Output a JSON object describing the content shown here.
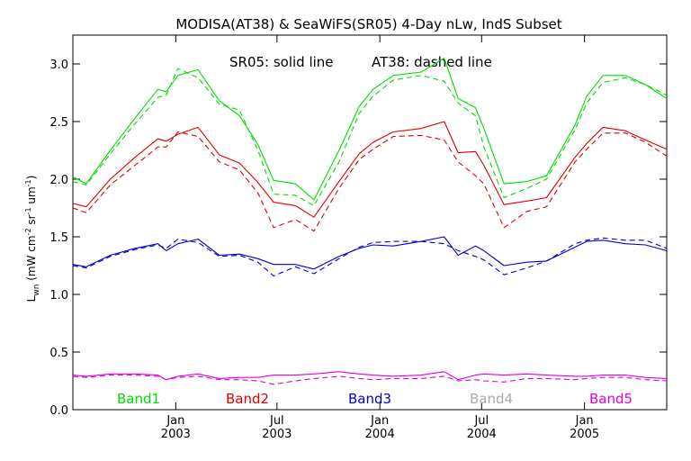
{
  "chart_data": {
    "type": "line",
    "title": "MODISA(AT38) & SeaWiFS(SR05) 4-Day nLw, IndS Subset",
    "annotation": {
      "solid": "SR05: solid line",
      "dashed": "AT38: dashed line"
    },
    "ylabel": {
      "main": "L",
      "sub": "wn",
      "units_pre": " (mW cm",
      "e1": "-2",
      "mid1": " sr",
      "e2": "-1",
      "mid2": " um",
      "e3": "-1",
      "units_post": ")"
    },
    "ylim": [
      0.0,
      3.25
    ],
    "yticks": [
      {
        "v": 0.0,
        "label": "0.0"
      },
      {
        "v": 0.5,
        "label": "0.5"
      },
      {
        "v": 1.0,
        "label": "1.0"
      },
      {
        "v": 1.5,
        "label": "1.5"
      },
      {
        "v": 2.0,
        "label": "2.0"
      },
      {
        "v": 2.5,
        "label": "2.5"
      },
      {
        "v": 3.0,
        "label": "3.0"
      }
    ],
    "xlim": [
      "2002-07-01",
      "2005-05-28"
    ],
    "xticks": [
      {
        "date": "2003-01-01",
        "month": "Jan",
        "year": "2003"
      },
      {
        "date": "2003-07-01",
        "month": "Jul",
        "year": "2003"
      },
      {
        "date": "2004-01-01",
        "month": "Jan",
        "year": "2004"
      },
      {
        "date": "2004-07-01",
        "month": "Jul",
        "year": "2004"
      },
      {
        "date": "2005-01-01",
        "month": "Jan",
        "year": "2005"
      }
    ],
    "legend": [
      {
        "label": "Band1",
        "color": "#00dd00"
      },
      {
        "label": "Band2",
        "color": "#dd0000"
      },
      {
        "label": "Band3",
        "color": "#0000cc"
      },
      {
        "label": "Band4",
        "color": "#aaaaaa"
      },
      {
        "label": "Band5",
        "color": "#dd00dd"
      }
    ],
    "series": [
      {
        "name": "Band1",
        "instrument": "SR05",
        "style": "solid",
        "color": "#00dd00",
        "x": [
          "2002-07-01",
          "2002-07-25",
          "2002-09-06",
          "2002-10-20",
          "2002-11-30",
          "2002-12-15",
          "2003-01-05",
          "2003-02-10",
          "2003-03-20",
          "2003-04-25",
          "2003-05-28",
          "2003-06-25",
          "2003-08-03",
          "2003-09-05",
          "2003-10-20",
          "2003-11-25",
          "2003-12-20",
          "2004-01-25",
          "2004-03-15",
          "2004-04-25",
          "2004-05-20",
          "2004-06-20",
          "2004-07-05",
          "2004-08-10",
          "2004-09-20",
          "2004-10-25",
          "2004-12-15",
          "2005-01-05",
          "2005-02-03",
          "2005-03-15",
          "2005-04-20",
          "2005-05-28"
        ],
        "y": [
          2.02,
          1.96,
          2.25,
          2.53,
          2.78,
          2.76,
          2.9,
          2.95,
          2.68,
          2.55,
          2.3,
          1.99,
          1.96,
          1.82,
          2.25,
          2.63,
          2.78,
          2.9,
          2.93,
          3.05,
          2.7,
          2.62,
          2.44,
          1.96,
          1.98,
          2.03,
          2.47,
          2.72,
          2.9,
          2.9,
          2.82,
          2.7
        ]
      },
      {
        "name": "Band1",
        "instrument": "AT38",
        "style": "dashed",
        "color": "#00dd00",
        "x": [
          "2002-07-01",
          "2002-07-25",
          "2002-09-06",
          "2002-10-20",
          "2002-11-30",
          "2002-12-15",
          "2003-01-05",
          "2003-02-10",
          "2003-03-20",
          "2003-04-25",
          "2003-05-28",
          "2003-06-25",
          "2003-08-03",
          "2003-09-05",
          "2003-10-20",
          "2003-11-25",
          "2003-12-20",
          "2004-01-25",
          "2004-03-15",
          "2004-04-25",
          "2004-05-20",
          "2004-06-20",
          "2004-07-05",
          "2004-08-10",
          "2004-09-20",
          "2004-10-25",
          "2004-12-15",
          "2005-01-05",
          "2005-02-03",
          "2005-03-15",
          "2005-04-20",
          "2005-05-28"
        ],
        "y": [
          1.98,
          1.95,
          2.22,
          2.48,
          2.71,
          2.73,
          2.96,
          2.88,
          2.65,
          2.6,
          2.25,
          1.87,
          1.86,
          1.77,
          2.15,
          2.57,
          2.72,
          2.86,
          2.9,
          2.85,
          2.66,
          2.55,
          2.28,
          1.84,
          1.92,
          2.0,
          2.43,
          2.66,
          2.84,
          2.88,
          2.82,
          2.73
        ]
      },
      {
        "name": "Band2",
        "instrument": "SR05",
        "style": "solid",
        "color": "#dd0000",
        "x": [
          "2002-07-01",
          "2002-07-25",
          "2002-09-06",
          "2002-10-20",
          "2002-11-30",
          "2002-12-15",
          "2003-01-05",
          "2003-02-10",
          "2003-03-20",
          "2003-04-25",
          "2003-05-28",
          "2003-06-25",
          "2003-08-03",
          "2003-09-05",
          "2003-10-20",
          "2003-11-25",
          "2003-12-20",
          "2004-01-25",
          "2004-03-15",
          "2004-04-25",
          "2004-05-20",
          "2004-06-20",
          "2004-07-05",
          "2004-08-10",
          "2004-09-20",
          "2004-10-25",
          "2004-12-15",
          "2005-01-05",
          "2005-02-03",
          "2005-03-15",
          "2005-04-20",
          "2005-05-28"
        ],
        "y": [
          1.79,
          1.76,
          2.0,
          2.19,
          2.35,
          2.33,
          2.39,
          2.45,
          2.21,
          2.14,
          1.97,
          1.8,
          1.77,
          1.67,
          1.98,
          2.22,
          2.32,
          2.41,
          2.44,
          2.5,
          2.23,
          2.24,
          2.12,
          1.78,
          1.81,
          1.84,
          2.19,
          2.31,
          2.45,
          2.42,
          2.34,
          2.26
        ]
      },
      {
        "name": "Band2",
        "instrument": "AT38",
        "style": "dashed",
        "color": "#dd0000",
        "x": [
          "2002-07-01",
          "2002-07-25",
          "2002-09-06",
          "2002-10-20",
          "2002-11-30",
          "2002-12-15",
          "2003-01-05",
          "2003-02-10",
          "2003-03-20",
          "2003-04-25",
          "2003-05-28",
          "2003-06-25",
          "2003-08-03",
          "2003-09-05",
          "2003-10-20",
          "2003-11-25",
          "2003-12-20",
          "2004-01-25",
          "2004-03-15",
          "2004-04-25",
          "2004-05-20",
          "2004-06-20",
          "2004-07-05",
          "2004-08-10",
          "2004-09-20",
          "2004-10-25",
          "2004-12-15",
          "2005-01-05",
          "2005-02-03",
          "2005-03-15",
          "2005-04-20",
          "2005-05-28"
        ],
        "y": [
          1.75,
          1.71,
          1.95,
          2.12,
          2.28,
          2.28,
          2.41,
          2.37,
          2.15,
          2.08,
          1.88,
          1.58,
          1.65,
          1.55,
          1.92,
          2.17,
          2.26,
          2.37,
          2.38,
          2.34,
          2.15,
          2.03,
          1.96,
          1.58,
          1.72,
          1.76,
          2.15,
          2.26,
          2.4,
          2.4,
          2.32,
          2.2
        ]
      },
      {
        "name": "Band3",
        "instrument": "SR05",
        "style": "solid",
        "color": "#0000cc",
        "x": [
          "2002-07-01",
          "2002-07-25",
          "2002-09-06",
          "2002-10-20",
          "2002-11-30",
          "2002-12-15",
          "2003-01-05",
          "2003-02-10",
          "2003-03-20",
          "2003-04-25",
          "2003-05-28",
          "2003-06-25",
          "2003-08-03",
          "2003-09-05",
          "2003-10-20",
          "2003-11-25",
          "2003-12-20",
          "2004-01-25",
          "2004-03-15",
          "2004-04-25",
          "2004-05-20",
          "2004-06-20",
          "2004-07-05",
          "2004-08-10",
          "2004-09-20",
          "2004-10-25",
          "2004-12-15",
          "2005-01-05",
          "2005-02-03",
          "2005-03-15",
          "2005-04-20",
          "2005-05-28"
        ],
        "y": [
          1.26,
          1.24,
          1.34,
          1.4,
          1.44,
          1.38,
          1.44,
          1.48,
          1.34,
          1.35,
          1.31,
          1.26,
          1.26,
          1.22,
          1.33,
          1.4,
          1.43,
          1.42,
          1.46,
          1.5,
          1.34,
          1.42,
          1.38,
          1.25,
          1.28,
          1.29,
          1.41,
          1.46,
          1.47,
          1.44,
          1.43,
          1.38
        ]
      },
      {
        "name": "Band3",
        "instrument": "AT38",
        "style": "dashed",
        "color": "#0000cc",
        "x": [
          "2002-07-01",
          "2002-07-25",
          "2002-09-06",
          "2002-10-20",
          "2002-11-30",
          "2002-12-15",
          "2003-01-05",
          "2003-02-10",
          "2003-03-20",
          "2003-04-25",
          "2003-05-28",
          "2003-06-25",
          "2003-08-03",
          "2003-09-05",
          "2003-10-20",
          "2003-11-25",
          "2003-12-20",
          "2004-01-25",
          "2004-03-15",
          "2004-04-25",
          "2004-05-20",
          "2004-06-20",
          "2004-07-05",
          "2004-08-10",
          "2004-09-20",
          "2004-10-25",
          "2004-12-15",
          "2005-01-05",
          "2005-02-03",
          "2005-03-15",
          "2005-04-20",
          "2005-05-28"
        ],
        "y": [
          1.25,
          1.23,
          1.33,
          1.39,
          1.43,
          1.4,
          1.48,
          1.45,
          1.33,
          1.34,
          1.28,
          1.16,
          1.24,
          1.18,
          1.31,
          1.41,
          1.45,
          1.46,
          1.46,
          1.44,
          1.38,
          1.33,
          1.3,
          1.17,
          1.23,
          1.29,
          1.44,
          1.47,
          1.49,
          1.47,
          1.47,
          1.4
        ]
      },
      {
        "name": "Band4",
        "instrument": "SR05",
        "style": "solid",
        "color": "#aaaaaa",
        "x": [],
        "y": []
      },
      {
        "name": "Band5",
        "instrument": "SR05",
        "style": "solid",
        "color": "#dd00dd",
        "x": [
          "2002-07-01",
          "2002-07-25",
          "2002-09-06",
          "2002-10-20",
          "2002-11-30",
          "2002-12-15",
          "2003-01-05",
          "2003-02-10",
          "2003-03-20",
          "2003-04-25",
          "2003-05-28",
          "2003-06-25",
          "2003-08-03",
          "2003-09-05",
          "2003-10-20",
          "2003-11-25",
          "2003-12-20",
          "2004-01-25",
          "2004-03-15",
          "2004-04-25",
          "2004-05-20",
          "2004-06-20",
          "2004-07-05",
          "2004-08-10",
          "2004-09-20",
          "2004-10-25",
          "2004-12-15",
          "2005-01-05",
          "2005-02-03",
          "2005-03-15",
          "2005-04-20",
          "2005-05-28"
        ],
        "y": [
          0.3,
          0.29,
          0.31,
          0.31,
          0.3,
          0.26,
          0.29,
          0.31,
          0.27,
          0.28,
          0.28,
          0.3,
          0.3,
          0.31,
          0.33,
          0.31,
          0.3,
          0.29,
          0.3,
          0.33,
          0.26,
          0.3,
          0.31,
          0.3,
          0.31,
          0.3,
          0.29,
          0.29,
          0.3,
          0.3,
          0.28,
          0.27
        ]
      },
      {
        "name": "Band5",
        "instrument": "AT38",
        "style": "dashed",
        "color": "#dd00dd",
        "x": [
          "2002-07-01",
          "2002-07-25",
          "2002-09-06",
          "2002-10-20",
          "2002-11-30",
          "2002-12-15",
          "2003-01-05",
          "2003-02-10",
          "2003-03-20",
          "2003-04-25",
          "2003-05-28",
          "2003-06-25",
          "2003-08-03",
          "2003-09-05",
          "2003-10-20",
          "2003-11-25",
          "2003-12-20",
          "2004-01-25",
          "2004-03-15",
          "2004-04-25",
          "2004-05-20",
          "2004-06-20",
          "2004-07-05",
          "2004-08-10",
          "2004-09-20",
          "2004-10-25",
          "2004-12-15",
          "2005-01-05",
          "2005-02-03",
          "2005-03-15",
          "2005-04-20",
          "2005-05-28"
        ],
        "y": [
          0.29,
          0.28,
          0.3,
          0.3,
          0.29,
          0.26,
          0.28,
          0.29,
          0.26,
          0.26,
          0.25,
          0.22,
          0.25,
          0.27,
          0.29,
          0.27,
          0.26,
          0.27,
          0.27,
          0.29,
          0.25,
          0.26,
          0.25,
          0.24,
          0.27,
          0.27,
          0.26,
          0.27,
          0.28,
          0.28,
          0.26,
          0.25
        ]
      }
    ]
  }
}
